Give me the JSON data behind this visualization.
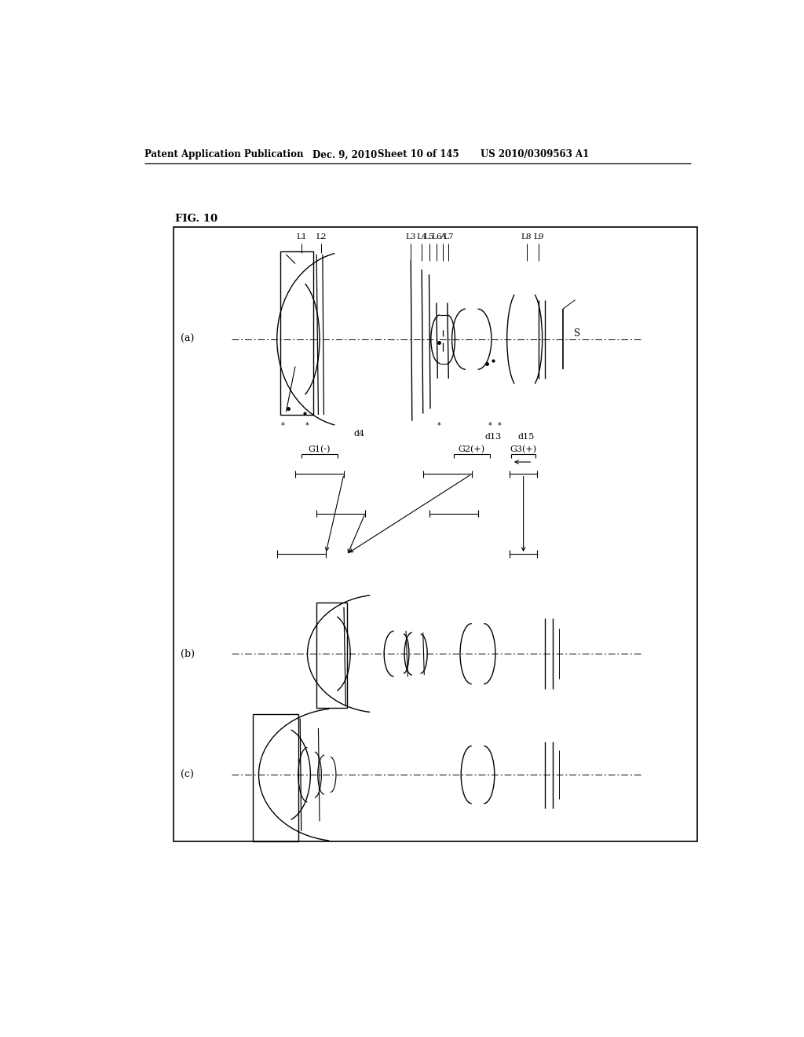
{
  "bg_color": "#ffffff",
  "line_color": "#000000",
  "header_text": "Patent Application Publication",
  "header_date": "Dec. 9, 2010",
  "header_sheet": "Sheet 10 of 145",
  "header_patent": "US 2010/0309563 A1",
  "fig_label": "FIG. 10",
  "section_a_label": "(a)",
  "section_b_label": "(b)",
  "section_c_label": "(c)",
  "s_label": "S"
}
